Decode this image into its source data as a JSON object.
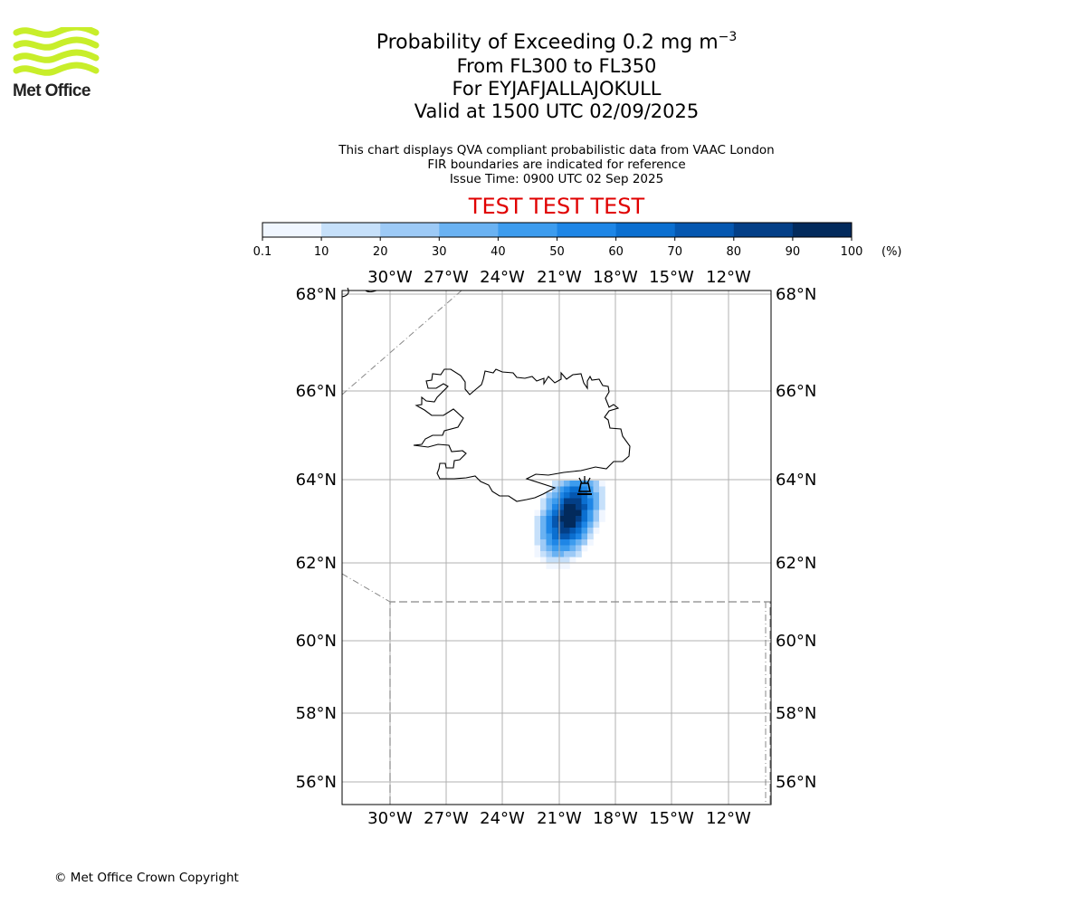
{
  "brand": {
    "logo_text": "Met Office",
    "logo_color": "#c8ee2a"
  },
  "header": {
    "title_main": "Probability of Exceeding 0.2 mg m",
    "title_exponent": "−3",
    "range_line": "From FL300 to FL350",
    "volcano_line": "For EYJAFJALLAJOKULL",
    "valid_line": "Valid at 1500 UTC 02/09/2025",
    "info_line_1": "This chart displays QVA compliant probabilistic data from VAAC London",
    "info_line_2": "FIR boundaries are indicated for reference",
    "issue_line": "Issue Time: 0900 UTC 02 Sep 2025",
    "test_banner": "TEST TEST TEST",
    "test_color": "#e00000"
  },
  "colorbar": {
    "ticks": [
      "0.1",
      "10",
      "20",
      "30",
      "40",
      "50",
      "60",
      "70",
      "80",
      "90",
      "100"
    ],
    "unit": "(%)",
    "colors": [
      "#f0f6ff",
      "#c6e0fa",
      "#9dcaf6",
      "#6ab2f2",
      "#3d9cee",
      "#1e86e6",
      "#0b6fd0",
      "#0557b0",
      "#033f87",
      "#022a5c"
    ]
  },
  "map": {
    "lon_labels": [
      "30°W",
      "27°W",
      "24°W",
      "21°W",
      "18°W",
      "15°W",
      "12°W"
    ],
    "lat_labels": [
      "68°N",
      "66°N",
      "64°N",
      "62°N",
      "60°N",
      "58°N",
      "56°N"
    ],
    "volcano_icon": "volcano-icon"
  },
  "footer": {
    "copyright": "© Met Office Crown Copyright"
  }
}
